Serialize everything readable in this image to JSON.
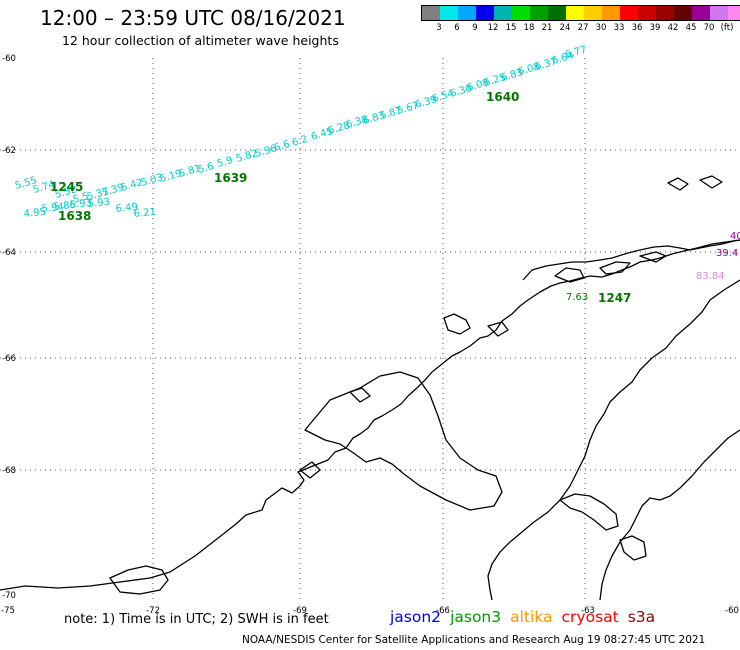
{
  "title": "12:00 – 23:59 UTC 08/16/2021",
  "subtitle": "12 hour collection of altimeter wave heights",
  "colorbar": {
    "unit": "(ft)",
    "colors": [
      "#7f7f7f",
      "#00e8e8",
      "#00a8ff",
      "#0000ee",
      "#00b4b4",
      "#00dd00",
      "#00a000",
      "#007000",
      "#ffff00",
      "#ffcc00",
      "#ff9900",
      "#ff0000",
      "#cc0000",
      "#990000",
      "#660000",
      "#990099",
      "#cc77ee",
      "#ff88ee",
      "#000000"
    ],
    "ticks": [
      "3",
      "6",
      "9",
      "12",
      "15",
      "18",
      "21",
      "24",
      "27",
      "30",
      "33",
      "36",
      "39",
      "42",
      "45",
      "70"
    ]
  },
  "axes": {
    "lat_ticks": [
      "-60",
      "-62",
      "-64",
      "-66",
      "-68",
      "-70"
    ],
    "lon_ticks": [
      "-75",
      "-72",
      "-69",
      "-66",
      "-63",
      "-60"
    ]
  },
  "tracks": [
    {
      "satellite": "jason3",
      "color": "#00cccc",
      "values": [
        "4.95",
        "5.94",
        "5.86",
        "5.93",
        "5.93",
        "6.49",
        "6.21"
      ]
    },
    {
      "satellite": "jason3",
      "color": "#00cccc",
      "values": [
        "5.55",
        "5.74",
        "5.52",
        "5.5",
        "5.37",
        "5.39",
        "5.42",
        "5.03",
        "5.19",
        "5.81",
        "5.6",
        "5.9",
        "5.82",
        "5.96",
        "6.6",
        "6.2",
        "6.45",
        "6.28",
        "6.38",
        "6.83",
        "5.87",
        "5.67",
        "6.39",
        "6.54",
        "6.30",
        "6.08",
        "6.25",
        "6.83",
        "6.08",
        "6.37",
        "6.64",
        "6.77"
      ]
    }
  ],
  "pass_labels": [
    {
      "text": "1245",
      "color": "#007700"
    },
    {
      "text": "1638",
      "color": "#007700"
    },
    {
      "text": "1639",
      "color": "#007700"
    },
    {
      "text": "1640",
      "color": "#007700"
    },
    {
      "text": "1247",
      "color": "#007700"
    }
  ],
  "east_labels": [
    {
      "text": "40",
      "color": "#990099"
    },
    {
      "text": "39.4",
      "color": "#990099"
    },
    {
      "text": "83.84",
      "color": "#dd88dd"
    },
    {
      "text": "7.63",
      "color": "#007700"
    }
  ],
  "note": "note: 1) Time is in UTC; 2) SWH is in feet",
  "legend": [
    {
      "name": "jason2",
      "color": "#0000ee"
    },
    {
      "name": "jason3",
      "color": "#009900"
    },
    {
      "name": "altika",
      "color": "#ff9900"
    },
    {
      "name": "cryosat",
      "color": "#ff0000"
    },
    {
      "name": "s3a",
      "color": "#990000"
    }
  ],
  "credit": "NOAA/NESDIS Center for Satellite Applications and Research    Aug 19 08:27:45 UTC 2021"
}
